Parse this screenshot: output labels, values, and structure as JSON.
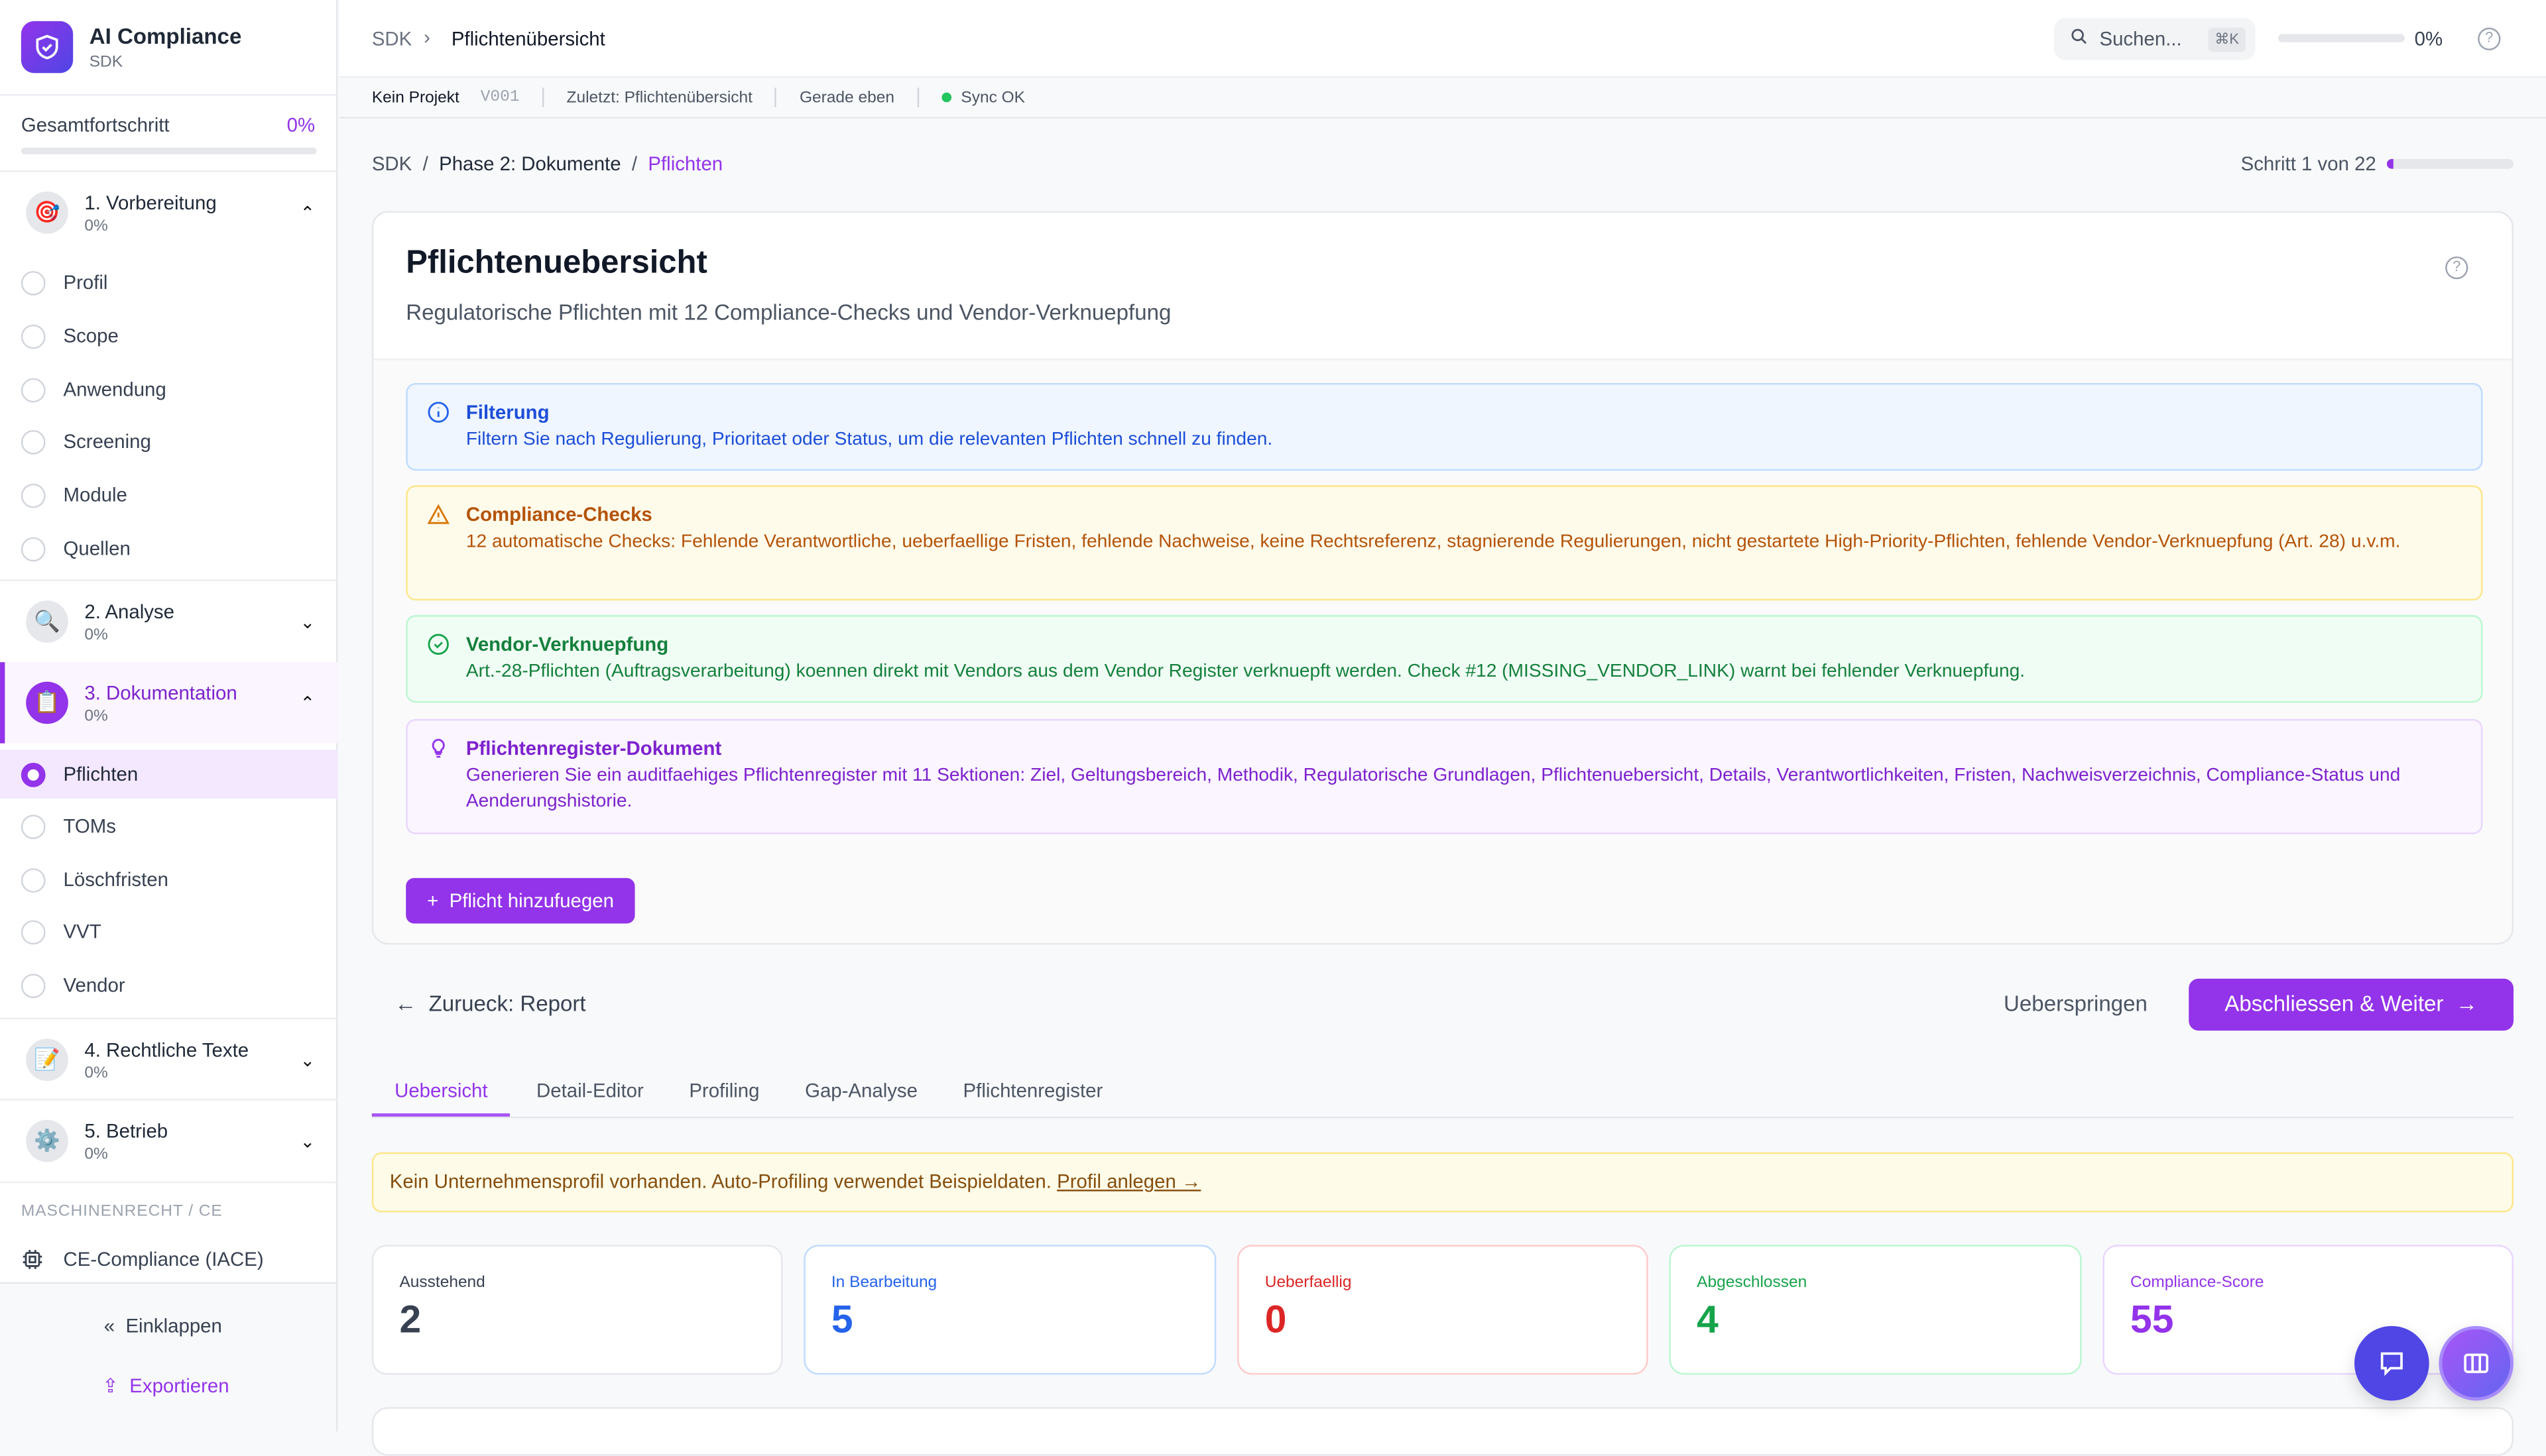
{
  "app": {
    "title": "AI Compliance",
    "subtitle": "SDK"
  },
  "progress": {
    "label": "Gesamtfortschritt",
    "value": "0%",
    "fraction": 0
  },
  "sections": [
    {
      "title": "1. Vorbereitung",
      "pct": "0%",
      "icon": "target-icon",
      "expanded": true,
      "items": [
        "Profil",
        "Scope",
        "Anwendung",
        "Screening",
        "Module",
        "Quellen"
      ]
    },
    {
      "title": "2. Analyse",
      "pct": "0%",
      "icon": "magnifier-icon",
      "expanded": false
    },
    {
      "title": "3. Dokumentation",
      "pct": "0%",
      "icon": "clipboard-icon",
      "expanded": true,
      "items": [
        "Pflichten",
        "TOMs",
        "Löschfristen",
        "VVT",
        "Vendor"
      ]
    },
    {
      "title": "4. Rechtliche Texte",
      "pct": "0%",
      "icon": "memo-icon",
      "expanded": false
    },
    {
      "title": "5. Betrieb",
      "pct": "0%",
      "icon": "gear-icon",
      "expanded": false
    }
  ],
  "machine": {
    "label": "MASCHINENRECHT / CE",
    "item": "CE-Compliance (IACE)"
  },
  "sidebar_footer": {
    "collapse": "Einklappen",
    "export": "Exportieren"
  },
  "topbar": {
    "crumb_root": "SDK",
    "crumb_current": "Pflichtenübersicht",
    "search_placeholder": "Suchen...",
    "shortcut": "⌘K",
    "progress": "0%"
  },
  "statusbar": {
    "project": "Kein Projekt",
    "version": "V001",
    "last": "Zuletzt: Pflichtenübersicht",
    "time": "Gerade eben",
    "sync": "Sync OK"
  },
  "breadcrumb": {
    "root": "SDK",
    "phase": "Phase 2: Dokumente",
    "current": "Pflichten",
    "step": "Schritt 1 von 22",
    "step_fraction": 0.045
  },
  "page": {
    "title": "Pflichtenuebersicht",
    "subtitle": "Regulatorische Pflichten mit 12 Compliance-Checks und Vendor-Verknuepfung"
  },
  "infos": [
    {
      "title": "Filterung",
      "text": "Filtern Sie nach Regulierung, Prioritaet oder Status, um die relevanten Pflichten schnell zu finden."
    },
    {
      "title": "Compliance-Checks",
      "text": "12 automatische Checks: Fehlende Verantwortliche, ueberfaellige Fristen, fehlende Nachweise, keine Rechtsreferenz, stagnierende Regulierungen, nicht gestartete High-Priority-Pflichten, fehlende Vendor-Verknuepfung (Art. 28) u.v.m."
    },
    {
      "title": "Vendor-Verknuepfung",
      "text": "Art.-28-Pflichten (Auftragsverarbeitung) koennen direkt mit Vendors aus dem Vendor Register verknuepft werden. Check #12 (MISSING_VENDOR_LINK) warnt bei fehlender Verknuepfung."
    },
    {
      "title": "Pflichtenregister-Dokument",
      "text": "Generieren Sie ein auditfaehiges Pflichtenregister mit 11 Sektionen: Ziel, Geltungsbereich, Methodik, Regulatorische Grundlagen, Pflichtenuebersicht, Details, Verantwortlichkeiten, Fristen, Nachweisverzeichnis, Compliance-Status und Aenderungshistorie."
    }
  ],
  "add_button": "Pflicht hinzufuegen",
  "nav": {
    "back": "Zurueck: Report",
    "skip": "Ueberspringen",
    "next": "Abschliessen & Weiter"
  },
  "tabs": [
    "Uebersicht",
    "Detail-Editor",
    "Profiling",
    "Gap-Analyse",
    "Pflichtenregister"
  ],
  "warning": {
    "text": "Kein Unternehmensprofil vorhanden. Auto-Profiling verwendet Beispieldaten.",
    "link": "Profil anlegen →"
  },
  "stats": [
    {
      "label": "Ausstehend",
      "value": "2",
      "color": "#374151"
    },
    {
      "label": "In Bearbeitung",
      "value": "5",
      "color": "#2563eb"
    },
    {
      "label": "Ueberfaellig",
      "value": "0",
      "color": "#dc2626"
    },
    {
      "label": "Abgeschlossen",
      "value": "4",
      "color": "#16a34a"
    },
    {
      "label": "Compliance-Score",
      "value": "55",
      "color": "#9333ea"
    }
  ]
}
